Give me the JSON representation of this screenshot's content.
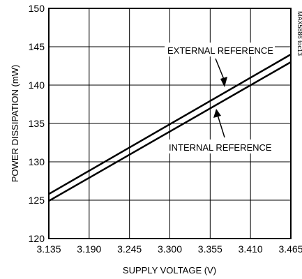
{
  "chart_data": {
    "type": "line",
    "title": "",
    "xlabel": "SUPPLY VOLTAGE (V)",
    "ylabel": "POWER DISSIPATION (mW)",
    "xlim": [
      3.135,
      3.465
    ],
    "ylim": [
      120,
      150
    ],
    "x_ticks": [
      "3.135",
      "3.190",
      "3.245",
      "3.300",
      "3.355",
      "3.410",
      "3.465"
    ],
    "y_ticks": [
      "120",
      "125",
      "130",
      "135",
      "140",
      "145",
      "150"
    ],
    "grid": true,
    "series": [
      {
        "name": "EXTERNAL REFERENCE",
        "x": [
          3.135,
          3.465
        ],
        "y": [
          125.8,
          144.0
        ]
      },
      {
        "name": "INTERNAL REFERENCE",
        "x": [
          3.135,
          3.465
        ],
        "y": [
          124.9,
          143.0
        ]
      }
    ],
    "annotations": [
      "EXTERNAL REFERENCE",
      "INTERNAL REFERENCE"
    ],
    "figure_code": "MAX5886 toc13"
  },
  "colors": {
    "line": "#000000",
    "grid": "#000000",
    "background": "#ffffff"
  }
}
